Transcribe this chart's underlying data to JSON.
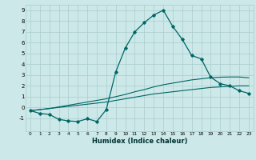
{
  "xlabel": "Humidex (Indice chaleur)",
  "bg_color": "#cce8e8",
  "grid_color": "#aacccc",
  "line_color": "#006666",
  "xlim": [
    -0.5,
    23.5
  ],
  "ylim": [
    -2.2,
    9.5
  ],
  "xticks": [
    0,
    1,
    2,
    3,
    4,
    5,
    6,
    7,
    8,
    9,
    10,
    11,
    12,
    13,
    14,
    15,
    16,
    17,
    18,
    19,
    20,
    21,
    22,
    23
  ],
  "yticks": [
    -1,
    0,
    1,
    2,
    3,
    4,
    5,
    6,
    7,
    8,
    9
  ],
  "line1_x": [
    0,
    1,
    2,
    3,
    4,
    5,
    6,
    7,
    8,
    9,
    10,
    11,
    12,
    13,
    14,
    15,
    16,
    17,
    18,
    19,
    20,
    21,
    22,
    23
  ],
  "line1_y": [
    -0.3,
    -0.2,
    -0.1,
    0.0,
    0.1,
    0.2,
    0.3,
    0.4,
    0.5,
    0.65,
    0.8,
    0.95,
    1.1,
    1.25,
    1.35,
    1.45,
    1.55,
    1.65,
    1.75,
    1.85,
    1.9,
    1.95,
    2.0,
    2.0
  ],
  "line2_x": [
    0,
    1,
    2,
    3,
    4,
    5,
    6,
    7,
    8,
    9,
    10,
    11,
    12,
    13,
    14,
    15,
    16,
    17,
    18,
    19,
    20,
    21,
    22,
    23
  ],
  "line2_y": [
    -0.3,
    -0.2,
    -0.1,
    0.05,
    0.2,
    0.35,
    0.5,
    0.65,
    0.8,
    1.0,
    1.2,
    1.45,
    1.65,
    1.9,
    2.1,
    2.25,
    2.4,
    2.55,
    2.65,
    2.75,
    2.8,
    2.82,
    2.82,
    2.75
  ],
  "line3_x": [
    0,
    1,
    2,
    3,
    4,
    5,
    6,
    7,
    8,
    9,
    10,
    11,
    12,
    13,
    14,
    15,
    16,
    17,
    18,
    19,
    20,
    21,
    22,
    23
  ],
  "line3_y": [
    -0.3,
    -0.55,
    -0.65,
    -1.1,
    -1.25,
    -1.3,
    -1.05,
    -1.3,
    -0.2,
    3.3,
    5.5,
    7.0,
    7.85,
    8.55,
    9.0,
    7.5,
    6.3,
    4.8,
    4.5,
    2.8,
    2.2,
    2.0,
    1.55,
    1.3
  ]
}
